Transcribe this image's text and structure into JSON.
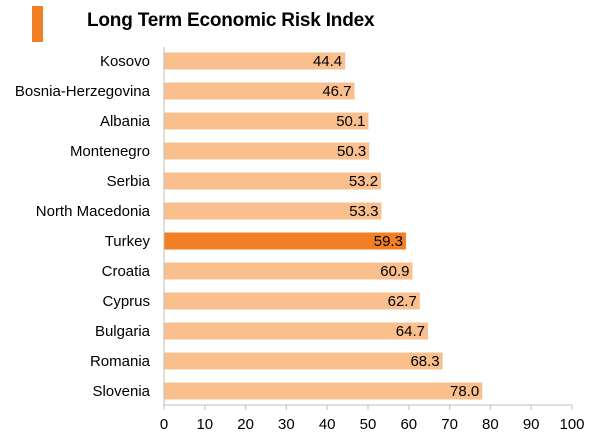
{
  "title": "Long Term Economic Risk Index",
  "colors": {
    "bar": "#f9c08e",
    "highlight": "#f07f26",
    "marker": "#f07f26",
    "axis": "#bfbfbf"
  },
  "chart_data": {
    "type": "bar",
    "orientation": "horizontal",
    "title": "Long Term Economic Risk Index",
    "xlabel": "",
    "ylabel": "",
    "xlim": [
      0,
      100
    ],
    "ticks": [
      0,
      10,
      20,
      30,
      40,
      50,
      60,
      70,
      80,
      90,
      100
    ],
    "tick_labels": [
      "0",
      "10",
      "20",
      "30",
      "40",
      "50",
      "60",
      "70",
      "80",
      "90",
      "100"
    ],
    "grid": false,
    "legend": "none",
    "highlight_category": "Turkey",
    "categories": [
      "Kosovo",
      "Bosnia-Herzegovina",
      "Albania",
      "Montenegro",
      "Serbia",
      "North Macedonia",
      "Turkey",
      "Croatia",
      "Cyprus",
      "Bulgaria",
      "Romania",
      "Slovenia"
    ],
    "values": [
      44.4,
      46.7,
      50.1,
      50.3,
      53.2,
      53.3,
      59.3,
      60.9,
      62.7,
      64.7,
      68.3,
      78.0
    ],
    "value_labels": [
      "44.4",
      "46.7",
      "50.1",
      "50.3",
      "53.2",
      "53.3",
      "59.3",
      "60.9",
      "62.7",
      "64.7",
      "68.3",
      "78.0"
    ]
  }
}
